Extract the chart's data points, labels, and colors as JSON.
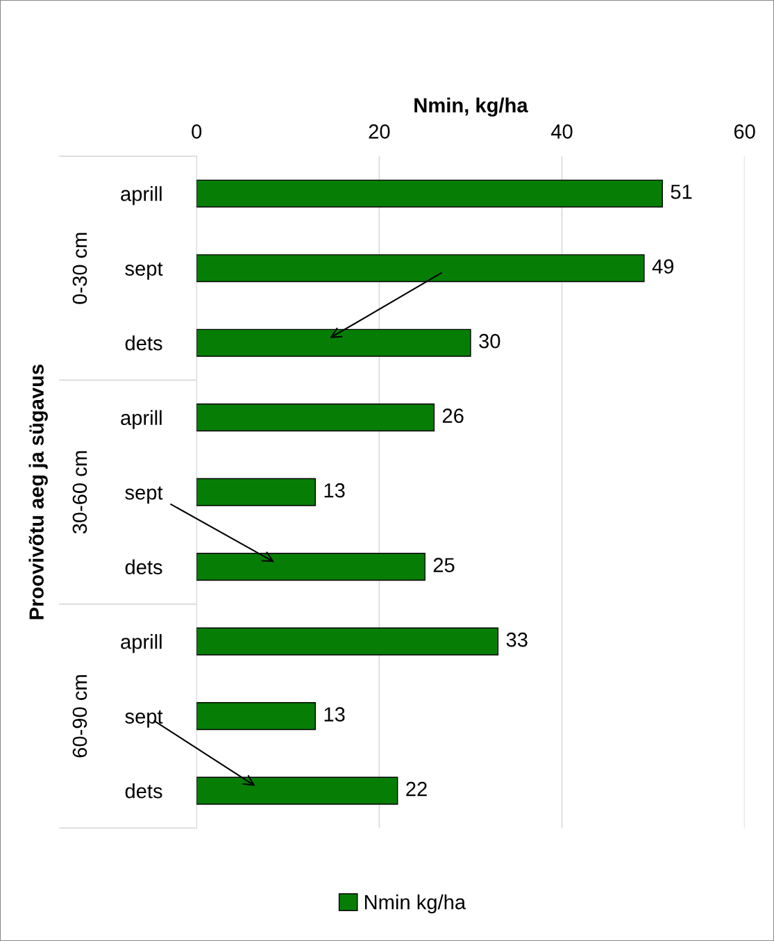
{
  "chart_data": {
    "type": "bar",
    "orientation": "horizontal",
    "xlabel": "Nmin, kg/ha",
    "ylabel": "Proovivõtu aeg ja sügavus",
    "categories": [
      "aprill",
      "sept",
      "dets",
      "aprill",
      "sept",
      "dets",
      "aprill",
      "sept",
      "dets"
    ],
    "series": [
      {
        "name": "Nmin kg/ha",
        "color": "#067e06",
        "values": [
          51,
          49,
          30,
          26,
          13,
          25,
          33,
          13,
          22
        ]
      }
    ],
    "annotations": [
      "0-30 cm",
      "30-60 cm",
      "60-90 cm"
    ],
    "xlim": [
      0,
      60
    ],
    "xticks": [
      0,
      20,
      40,
      60
    ],
    "grid": "x",
    "data_labels": true,
    "legend": "bottom"
  }
}
